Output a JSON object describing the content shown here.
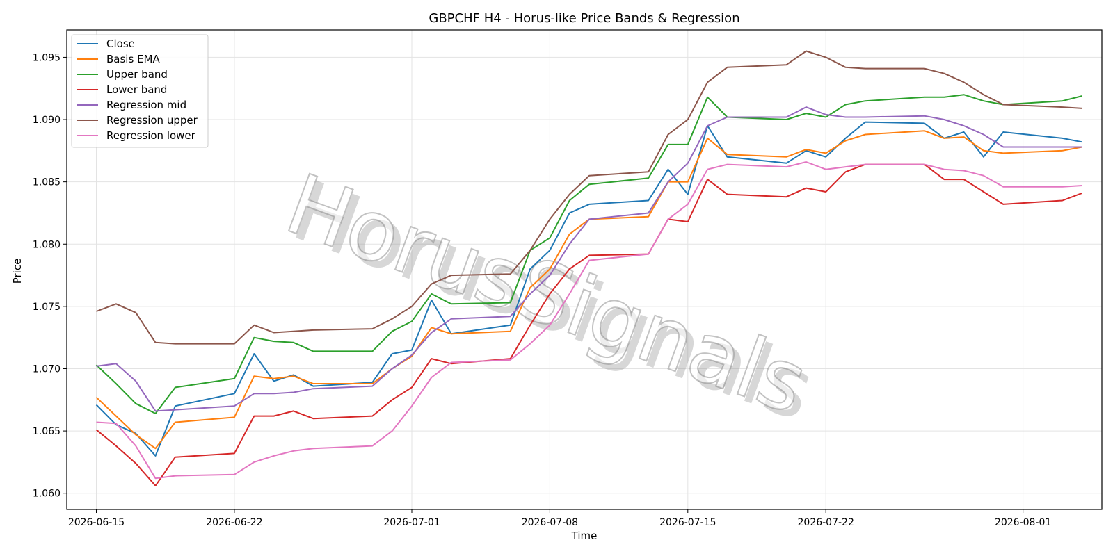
{
  "chart_data": {
    "type": "line",
    "title": "GBPCHF H4 - Horus-like Price Bands & Regression",
    "xlabel": "Time",
    "ylabel": "Price",
    "xlim": [
      "2026-06-13T12:00",
      "2026-08-05T00:00"
    ],
    "ylim": [
      1.0587,
      1.0972
    ],
    "xticks": [
      "2026-06-15",
      "2026-06-22",
      "2026-07-01",
      "2026-07-08",
      "2026-07-15",
      "2026-07-22",
      "2026-08-01"
    ],
    "yticks": [
      "1.060",
      "1.065",
      "1.070",
      "1.075",
      "1.080",
      "1.085",
      "1.090",
      "1.095"
    ],
    "grid": true,
    "legend_position": "upper-left",
    "watermark": "HorusSignals",
    "x": [
      "2026-06-15",
      "2026-06-16",
      "2026-06-17",
      "2026-06-18",
      "2026-06-19",
      "2026-06-22",
      "2026-06-23",
      "2026-06-24",
      "2026-06-25",
      "2026-06-26",
      "2026-06-29",
      "2026-06-30",
      "2026-07-01",
      "2026-07-02",
      "2026-07-03",
      "2026-07-06",
      "2026-07-07",
      "2026-07-08",
      "2026-07-09",
      "2026-07-10",
      "2026-07-13",
      "2026-07-14",
      "2026-07-15",
      "2026-07-16",
      "2026-07-17",
      "2026-07-20",
      "2026-07-21",
      "2026-07-22",
      "2026-07-23",
      "2026-07-24",
      "2026-07-27",
      "2026-07-28",
      "2026-07-29",
      "2026-07-30",
      "2026-07-31",
      "2026-08-03",
      "2026-08-04"
    ],
    "series": [
      {
        "name": "Close",
        "color": "#1f77b4",
        "values": [
          1.0671,
          1.0655,
          1.0648,
          1.063,
          1.067,
          1.068,
          1.0712,
          1.069,
          1.0695,
          1.0686,
          1.0689,
          1.0712,
          1.0715,
          1.0755,
          1.0728,
          1.0735,
          1.078,
          1.0795,
          1.0825,
          1.0832,
          1.0835,
          1.086,
          1.084,
          1.0895,
          1.087,
          1.0865,
          1.0875,
          1.087,
          1.0885,
          1.0898,
          1.0897,
          1.0885,
          1.089,
          1.087,
          1.089,
          1.0885,
          1.0882
        ]
      },
      {
        "name": "Basis EMA",
        "color": "#ff7f0e",
        "values": [
          1.0677,
          1.0662,
          1.0647,
          1.0636,
          1.0657,
          1.0661,
          1.0694,
          1.0692,
          1.0694,
          1.0688,
          1.0688,
          1.07,
          1.071,
          1.0733,
          1.0728,
          1.073,
          1.0765,
          1.078,
          1.0808,
          1.082,
          1.0822,
          1.085,
          1.085,
          1.0885,
          1.0872,
          1.087,
          1.0876,
          1.0873,
          1.0883,
          1.0888,
          1.0891,
          1.0885,
          1.0886,
          1.0875,
          1.0873,
          1.0875,
          1.0878
        ]
      },
      {
        "name": "Upper band",
        "color": "#2ca02c",
        "values": [
          1.0703,
          1.0688,
          1.0672,
          1.0664,
          1.0685,
          1.0692,
          1.0725,
          1.0722,
          1.0721,
          1.0714,
          1.0714,
          1.073,
          1.0738,
          1.076,
          1.0752,
          1.0753,
          1.0795,
          1.0805,
          1.0835,
          1.0848,
          1.0853,
          1.088,
          1.088,
          1.0918,
          1.0902,
          1.09,
          1.0905,
          1.0902,
          1.0912,
          1.0915,
          1.0918,
          1.0918,
          1.092,
          1.0915,
          1.0912,
          1.0915,
          1.0919
        ]
      },
      {
        "name": "Lower band",
        "color": "#d62728",
        "values": [
          1.0651,
          1.0638,
          1.0624,
          1.0606,
          1.0629,
          1.0632,
          1.0662,
          1.0662,
          1.0666,
          1.066,
          1.0662,
          1.0675,
          1.0685,
          1.0708,
          1.0704,
          1.0708,
          1.0735,
          1.076,
          1.078,
          1.0791,
          1.0792,
          1.082,
          1.0818,
          1.0852,
          1.084,
          1.0838,
          1.0845,
          1.0842,
          1.0858,
          1.0864,
          1.0864,
          1.0852,
          1.0852,
          1.0842,
          1.0832,
          1.0835,
          1.0841
        ]
      },
      {
        "name": "Regression mid",
        "color": "#9467bd",
        "values": [
          1.0702,
          1.0704,
          1.069,
          1.0666,
          1.0667,
          1.067,
          1.068,
          1.068,
          1.0681,
          1.0684,
          1.0686,
          1.07,
          1.0711,
          1.0729,
          1.074,
          1.0742,
          1.076,
          1.0775,
          1.08,
          1.082,
          1.0825,
          1.085,
          1.0865,
          1.0895,
          1.0902,
          1.0902,
          1.091,
          1.0904,
          1.0902,
          1.0902,
          1.0903,
          1.09,
          1.0895,
          1.0888,
          1.0878,
          1.0878,
          1.0878
        ]
      },
      {
        "name": "Regression upper",
        "color": "#8c564b",
        "values": [
          1.0746,
          1.0752,
          1.0745,
          1.0721,
          1.072,
          1.072,
          1.0735,
          1.0729,
          1.073,
          1.0731,
          1.0732,
          1.074,
          1.075,
          1.0768,
          1.0775,
          1.0776,
          1.0795,
          1.082,
          1.084,
          1.0855,
          1.0858,
          1.0888,
          1.09,
          1.093,
          1.0942,
          1.0944,
          1.0955,
          1.095,
          1.0942,
          1.0941,
          1.0941,
          1.0937,
          1.093,
          1.092,
          1.0912,
          1.091,
          1.0909
        ]
      },
      {
        "name": "Regression lower",
        "color": "#e377c2",
        "values": [
          1.0657,
          1.0656,
          1.0638,
          1.0612,
          1.0614,
          1.0615,
          1.0625,
          1.063,
          1.0634,
          1.0636,
          1.0638,
          1.065,
          1.067,
          1.0693,
          1.0705,
          1.0707,
          1.072,
          1.0735,
          1.076,
          1.0787,
          1.0792,
          1.082,
          1.0832,
          1.086,
          1.0864,
          1.0862,
          1.0866,
          1.086,
          1.0862,
          1.0864,
          1.0864,
          1.086,
          1.0859,
          1.0855,
          1.0846,
          1.0846,
          1.0847
        ]
      }
    ]
  }
}
